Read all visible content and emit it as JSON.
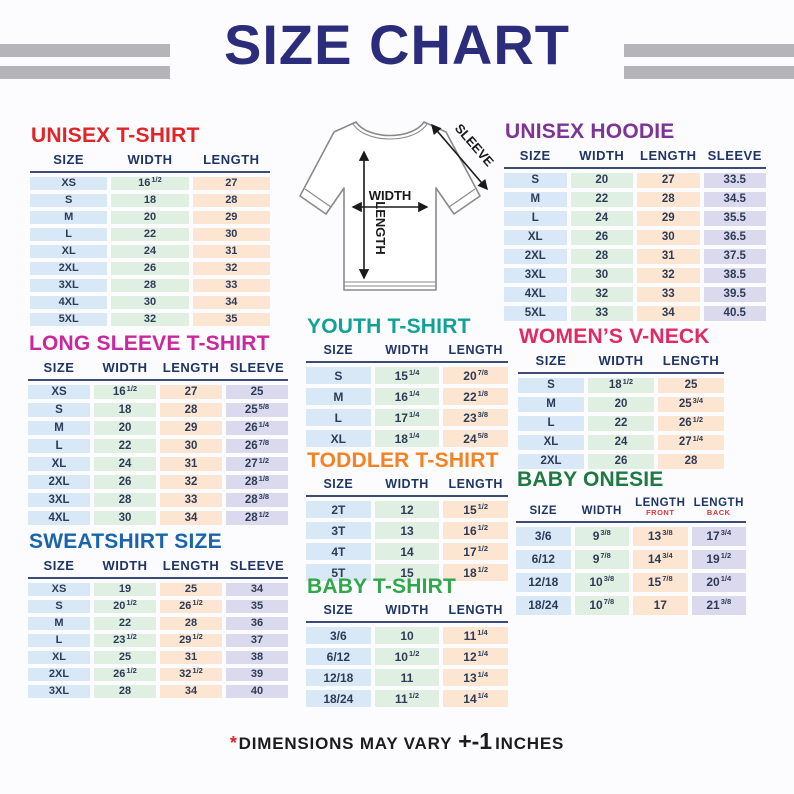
{
  "page": {
    "title": "SIZE CHART"
  },
  "footnote": {
    "asterisk": "*",
    "text": "DIMENSIONS MAY VARY",
    "tolerance": "+-1",
    "unit": "INCHES"
  },
  "diagram": {
    "width_label": "WIDTH",
    "length_label": "LENGTH",
    "sleeve_label": "SLEEVE"
  },
  "colors": {
    "title_navy": "#2b2d7b",
    "decorative_bars": "#b5b4b8",
    "header_text": "#1f3566",
    "header_rule": "#3c4c78",
    "value_text": "#2e3b57",
    "header_sub_red": "#d63a3a",
    "footnote_asterisk": "#e02427",
    "cell": {
      "size": "#d8e8f7",
      "width": "#dff0e2",
      "length": "#fce5d1",
      "sleeve": "#dbd9ed"
    }
  },
  "tables": [
    {
      "id": "unisex-tshirt",
      "title": "UNISEX T-SHIRT",
      "color": "#e02427",
      "columns": [
        "SIZE",
        "WIDTH",
        "LENGTH"
      ],
      "col_types": [
        "size",
        "width",
        "length"
      ],
      "rows": [
        [
          "XS",
          "16 1/2",
          "27"
        ],
        [
          "S",
          "18",
          "28"
        ],
        [
          "M",
          "20",
          "29"
        ],
        [
          "L",
          "22",
          "30"
        ],
        [
          "XL",
          "24",
          "31"
        ],
        [
          "2XL",
          "26",
          "32"
        ],
        [
          "3XL",
          "28",
          "33"
        ],
        [
          "4XL",
          "30",
          "34"
        ],
        [
          "5XL",
          "32",
          "35"
        ]
      ]
    },
    {
      "id": "unisex-hoodie",
      "title": "UNISEX HOODIE",
      "color": "#7d3494",
      "columns": [
        "SIZE",
        "WIDTH",
        "LENGTH",
        "SLEEVE"
      ],
      "col_types": [
        "size",
        "width",
        "length",
        "sleeve"
      ],
      "rows": [
        [
          "S",
          "20",
          "27",
          "33.5"
        ],
        [
          "M",
          "22",
          "28",
          "34.5"
        ],
        [
          "L",
          "24",
          "29",
          "35.5"
        ],
        [
          "XL",
          "26",
          "30",
          "36.5"
        ],
        [
          "2XL",
          "28",
          "31",
          "37.5"
        ],
        [
          "3XL",
          "30",
          "32",
          "38.5"
        ],
        [
          "4XL",
          "32",
          "33",
          "39.5"
        ],
        [
          "5XL",
          "33",
          "34",
          "40.5"
        ]
      ]
    },
    {
      "id": "long-sleeve-tshirt",
      "title": "LONG SLEEVE T-SHIRT",
      "color": "#c9289d",
      "columns": [
        "SIZE",
        "WIDTH",
        "LENGTH",
        "SLEEVE"
      ],
      "col_types": [
        "size",
        "width",
        "length",
        "sleeve"
      ],
      "rows": [
        [
          "XS",
          "16 1/2",
          "27",
          "25"
        ],
        [
          "S",
          "18",
          "28",
          "25 5/8"
        ],
        [
          "M",
          "20",
          "29",
          "26 1/4"
        ],
        [
          "L",
          "22",
          "30",
          "26 7/8"
        ],
        [
          "XL",
          "24",
          "31",
          "27 1/2"
        ],
        [
          "2XL",
          "26",
          "32",
          "28 1/8"
        ],
        [
          "3XL",
          "28",
          "33",
          "28 3/8"
        ],
        [
          "4XL",
          "30",
          "34",
          "28 1/2"
        ]
      ]
    },
    {
      "id": "youth-tshirt",
      "title": "YOUTH T-SHIRT",
      "color": "#12a295",
      "columns": [
        "SIZE",
        "WIDTH",
        "LENGTH"
      ],
      "col_types": [
        "size",
        "width",
        "length"
      ],
      "rows": [
        [
          "S",
          "15 1/4",
          "20 7/8"
        ],
        [
          "M",
          "16 1/4",
          "22 1/8"
        ],
        [
          "L",
          "17 1/4",
          "23 3/8"
        ],
        [
          "XL",
          "18 1/4",
          "24 5/8"
        ]
      ]
    },
    {
      "id": "womens-vneck",
      "title": "WOMEN’S V-NECK",
      "color": "#e12a62",
      "columns": [
        "SIZE",
        "WIDTH",
        "LENGTH"
      ],
      "col_types": [
        "size",
        "width",
        "length"
      ],
      "rows": [
        [
          "S",
          "18 1/2",
          "25"
        ],
        [
          "M",
          "20",
          "25 3/4"
        ],
        [
          "L",
          "22",
          "26 1/2"
        ],
        [
          "XL",
          "24",
          "27 1/4"
        ],
        [
          "2XL",
          "26",
          "28"
        ]
      ]
    },
    {
      "id": "toddler-tshirt",
      "title": "TODDLER T-SHIRT",
      "color": "#f28222",
      "columns": [
        "SIZE",
        "WIDTH",
        "LENGTH"
      ],
      "col_types": [
        "size",
        "width",
        "length"
      ],
      "rows": [
        [
          "2T",
          "12",
          "15 1/2"
        ],
        [
          "3T",
          "13",
          "16 1/2"
        ],
        [
          "4T",
          "14",
          "17 1/2"
        ],
        [
          "5T",
          "15",
          "18 1/2"
        ]
      ]
    },
    {
      "id": "sweatshirt-size",
      "title": "SWEATSHIRT SIZE",
      "color": "#1a64ad",
      "columns": [
        "SIZE",
        "WIDTH",
        "LENGTH",
        "SLEEVE"
      ],
      "col_types": [
        "size",
        "width",
        "length",
        "sleeve"
      ],
      "rows": [
        [
          "XS",
          "19",
          "25",
          "34"
        ],
        [
          "S",
          "20 1/2",
          "26 1/2",
          "35"
        ],
        [
          "M",
          "22",
          "28",
          "36"
        ],
        [
          "L",
          "23 1/2",
          "29 1/2",
          "37"
        ],
        [
          "XL",
          "25",
          "31",
          "38"
        ],
        [
          "2XL",
          "26 1/2",
          "32 1/2",
          "39"
        ],
        [
          "3XL",
          "28",
          "34",
          "40"
        ]
      ]
    },
    {
      "id": "baby-onesie",
      "title": "BABY ONESIE",
      "color": "#1d7a42",
      "columns": [
        "SIZE",
        "WIDTH",
        {
          "label": "LENGTH",
          "sub": "FRONT"
        },
        {
          "label": "LENGTH",
          "sub": "BACK"
        }
      ],
      "col_types": [
        "size",
        "width",
        "length",
        "sleeve"
      ],
      "rows": [
        [
          "3/6",
          "9 3/8",
          "13 3/8",
          "17 3/4"
        ],
        [
          "6/12",
          "9 7/8",
          "14 3/4",
          "19 1/2"
        ],
        [
          "12/18",
          "10 3/8",
          "15 7/8",
          "20 1/4"
        ],
        [
          "18/24",
          "10 7/8",
          "17",
          "21 3/8"
        ]
      ]
    },
    {
      "id": "baby-tshirt",
      "title": "BABY T-SHIRT",
      "color": "#2fa84c",
      "columns": [
        "SIZE",
        "WIDTH",
        "LENGTH"
      ],
      "col_types": [
        "size",
        "width",
        "length"
      ],
      "rows": [
        [
          "3/6",
          "10",
          "11 1/4"
        ],
        [
          "6/12",
          "10 1/2",
          "12 1/4"
        ],
        [
          "12/18",
          "11",
          "13 1/4"
        ],
        [
          "18/24",
          "11 1/2",
          "14 1/4"
        ]
      ]
    }
  ]
}
